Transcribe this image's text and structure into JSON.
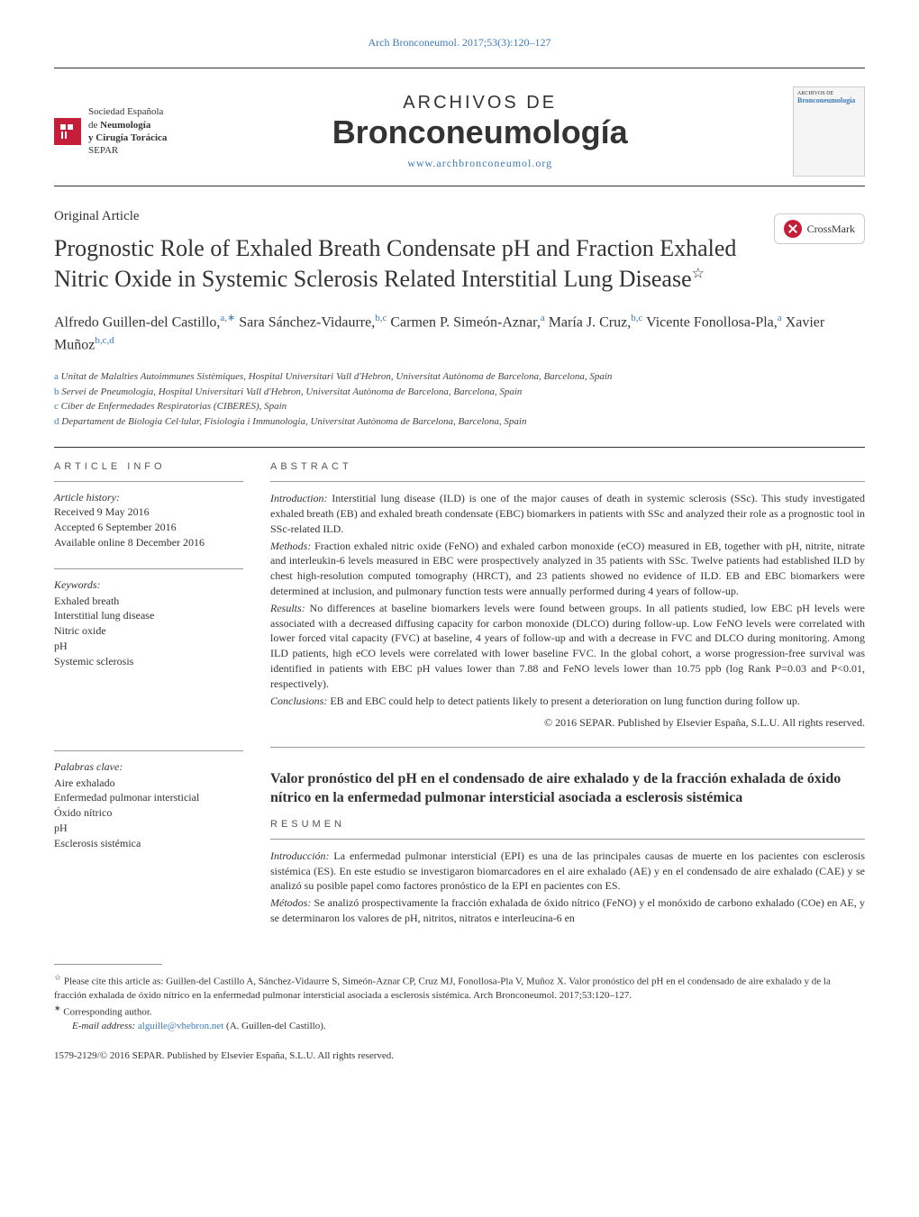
{
  "header": {
    "citation": "Arch Bronconeumol. 2017;53(3):120–127",
    "citation_link_color": "#3d7bb8"
  },
  "logo": {
    "line1": "Sociedad Española",
    "line2_prefix": "de ",
    "line2_bold": "Neumología",
    "line3_bold": "y Cirugía Torácica",
    "line4": "SEPAR"
  },
  "journal": {
    "pretitle": "ARCHIVOS DE",
    "title": "Bronconeumología",
    "url": "www.archbronconeumol.org",
    "cover_title": "Bronconeumología"
  },
  "crossmark": {
    "label": "CrossMark"
  },
  "article": {
    "type": "Original Article",
    "title": "Prognostic Role of Exhaled Breath Condensate pH and Fraction Exhaled Nitric Oxide in Systemic Sclerosis Related Interstitial Lung Disease",
    "star": "☆"
  },
  "authors": [
    {
      "name": "Alfredo Guillen-del Castillo,",
      "affil": "a,∗"
    },
    {
      "name": "Sara Sánchez-Vidaurre,",
      "affil": "b,c"
    },
    {
      "name": "Carmen P. Simeón-Aznar,",
      "affil": "a"
    },
    {
      "name": "María J. Cruz,",
      "affil": "b,c"
    },
    {
      "name": "Vicente Fonollosa-Pla,",
      "affil": "a"
    },
    {
      "name": "Xavier Muñoz",
      "affil": "b,c,d"
    }
  ],
  "affiliations": [
    {
      "letter": "a",
      "text": "Unitat de Malalties Autoimmunes Sistèmiques, Hospital Universitari Vall d'Hebron, Universitat Autònoma de Barcelona, Barcelona, Spain"
    },
    {
      "letter": "b",
      "text": "Servei de Pneumologia, Hospital Universitari Vall d'Hebron, Universitat Autònoma de Barcelona, Barcelona, Spain"
    },
    {
      "letter": "c",
      "text": "Ciber de Enfermedades Respiratorias (CIBERES), Spain"
    },
    {
      "letter": "d",
      "text": "Departament de Biologia Cel·lular, Fisiologia i Immunologia, Universitat Autònoma de Barcelona, Barcelona, Spain"
    }
  ],
  "article_info": {
    "heading": "ARTICLE INFO",
    "history_label": "Article history:",
    "received": "Received 9 May 2016",
    "accepted": "Accepted 6 September 2016",
    "online": "Available online 8 December 2016"
  },
  "keywords": {
    "label": "Keywords:",
    "items": [
      "Exhaled breath",
      "Interstitial lung disease",
      "Nitric oxide",
      "pH",
      "Systemic sclerosis"
    ]
  },
  "abstract": {
    "heading": "ABSTRACT",
    "intro_label": "Introduction:",
    "intro_text": " Interstitial lung disease (ILD) is one of the major causes of death in systemic sclerosis (SSc). This study investigated exhaled breath (EB) and exhaled breath condensate (EBC) biomarkers in patients with SSc and analyzed their role as a prognostic tool in SSc-related ILD.",
    "methods_label": "Methods:",
    "methods_text": " Fraction exhaled nitric oxide (FeNO) and exhaled carbon monoxide (eCO) measured in EB, together with pH, nitrite, nitrate and interleukin-6 levels measured in EBC were prospectively analyzed in 35 patients with SSc. Twelve patients had established ILD by chest high-resolution computed tomography (HRCT), and 23 patients showed no evidence of ILD. EB and EBC biomarkers were determined at inclusion, and pulmonary function tests were annually performed during 4 years of follow-up.",
    "results_label": "Results:",
    "results_text": " No differences at baseline biomarkers levels were found between groups. In all patients studied, low EBC pH levels were associated with a decreased diffusing capacity for carbon monoxide (DLCO) during follow-up. Low FeNO levels were correlated with lower forced vital capacity (FVC) at baseline, 4 years of follow-up and with a decrease in FVC and DLCO during monitoring. Among ILD patients, high eCO levels were correlated with lower baseline FVC. In the global cohort, a worse progression-free survival was identified in patients with EBC pH values lower than 7.88 and FeNO levels lower than 10.75 ppb (log Rank P=0.03 and P<0.01, respectively).",
    "conclusions_label": "Conclusions:",
    "conclusions_text": " EB and EBC could help to detect patients likely to present a deterioration on lung function during follow up.",
    "copyright": "© 2016 SEPAR. Published by Elsevier España, S.L.U. All rights reserved."
  },
  "spanish": {
    "title": "Valor pronóstico del pH en el condensado de aire exhalado y de la fracción exhalada de óxido nítrico en la enfermedad pulmonar intersticial asociada a esclerosis sistémica",
    "resumen_heading": "RESUMEN",
    "palabras_label": "Palabras clave:",
    "palabras_items": [
      "Aire exhalado",
      "Enfermedad pulmonar intersticial",
      "Óxido nítrico",
      "pH",
      "Esclerosis sistémica"
    ],
    "intro_label": "Introducción:",
    "intro_text": " La enfermedad pulmonar intersticial (EPI) es una de las principales causas de muerte en los pacientes con esclerosis sistémica (ES). En este estudio se investigaron biomarcadores en el aire exhalado (AE) y en el condensado de aire exhalado (CAE) y se analizó su posible papel como factores pronóstico de la EPI en pacientes con ES.",
    "methods_label": "Métodos:",
    "methods_text": " Se analizó prospectivamente la fracción exhalada de óxido nítrico (FeNO) y el monóxido de carbono exhalado (COe) en AE, y se determinaron los valores de pH, nitritos, nitratos e interleucina-6 en"
  },
  "footnotes": {
    "cite_star": "☆",
    "cite_text": " Please cite this article as: Guillen-del Castillo A, Sánchez-Vidaurre S, Simeón-Aznar CP, Cruz MJ, Fonollosa-Pla V, Muñoz X. Valor pronóstico del pH en el condensado de aire exhalado y de la fracción exhalada de óxido nítrico en la enfermedad pulmonar intersticial asociada a esclerosis sistémica. Arch Bronconeumol. 2017;53:120–127.",
    "corr_star": "∗",
    "corr_text": " Corresponding author.",
    "email_label": "E-mail address: ",
    "email": "alguille@vhebron.net",
    "email_author": " (A. Guillen-del Castillo).",
    "issn": "1579-2129/© 2016 SEPAR. Published by Elsevier España, S.L.U. All rights reserved."
  },
  "colors": {
    "link": "#3d7bb8",
    "brand_red": "#c41e3a"
  }
}
